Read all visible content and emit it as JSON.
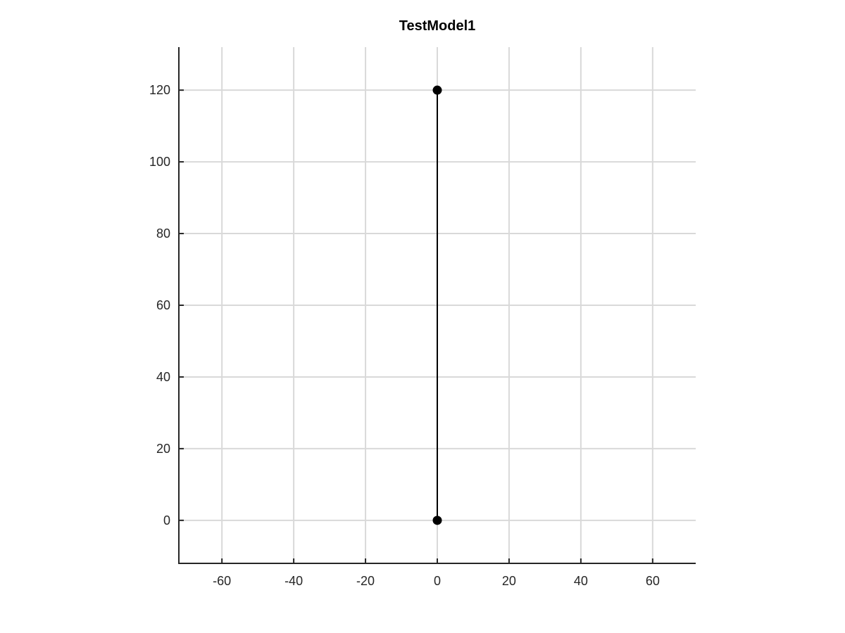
{
  "chart_data": {
    "type": "line",
    "title": "TestModel1",
    "xlabel": "",
    "ylabel": "",
    "xlim": [
      -72,
      72
    ],
    "ylim": [
      -12,
      132
    ],
    "x_ticks": [
      -60,
      -40,
      -20,
      0,
      20,
      40,
      60
    ],
    "x_tick_labels": [
      "-60",
      "-40",
      "-20",
      "0",
      "20",
      "40",
      "60"
    ],
    "y_ticks": [
      0,
      20,
      40,
      60,
      80,
      100,
      120
    ],
    "y_tick_labels": [
      "0",
      "20",
      "40",
      "60",
      "80",
      "100",
      "120"
    ],
    "grid": true,
    "box": false,
    "series": [
      {
        "x": [
          0,
          0
        ],
        "y": [
          0,
          120
        ],
        "color": "#000000",
        "marker": "circle"
      }
    ]
  }
}
